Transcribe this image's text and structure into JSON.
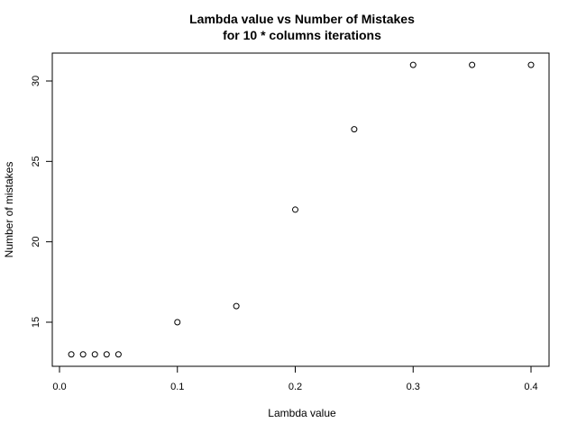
{
  "chart_data": {
    "type": "scatter",
    "title": [
      "Lambda value vs Number of Mistakes",
      "for 10 * columns iterations"
    ],
    "xlabel": "Lambda value",
    "ylabel": "Number of mistakes",
    "xlim": [
      0.0,
      0.4
    ],
    "ylim": [
      12.5,
      32
    ],
    "xticks": [
      0.0,
      0.1,
      0.2,
      0.3,
      0.4
    ],
    "xtick_labels": [
      "0.0",
      "0.1",
      "0.2",
      "0.3",
      "0.4"
    ],
    "yticks": [
      15,
      20,
      25,
      30
    ],
    "ytick_labels": [
      "15",
      "20",
      "25",
      "30"
    ],
    "grid": false,
    "marker": "open-circle",
    "x": [
      0.01,
      0.02,
      0.03,
      0.04,
      0.05,
      0.1,
      0.15,
      0.2,
      0.25,
      0.3,
      0.35,
      0.4
    ],
    "y": [
      13,
      13,
      13,
      13,
      13,
      15,
      16,
      22,
      27,
      31,
      31,
      31
    ]
  }
}
